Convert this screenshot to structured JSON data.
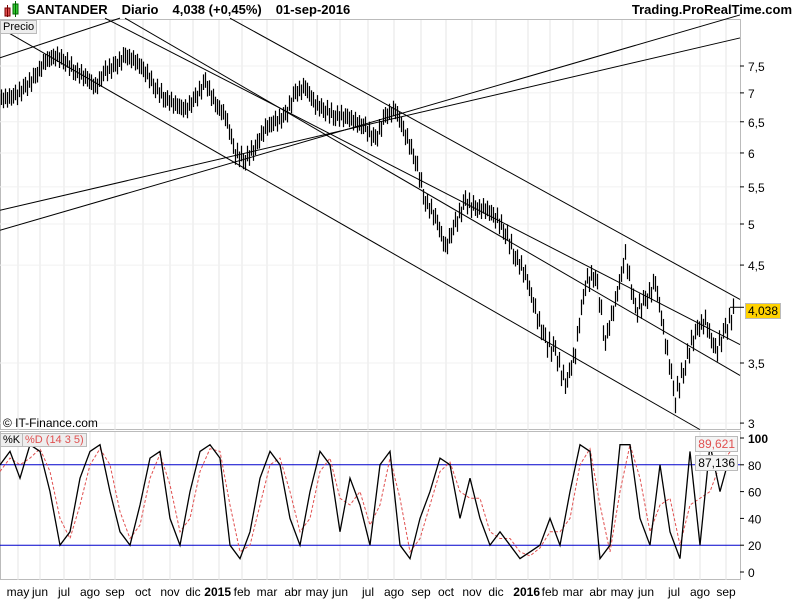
{
  "header": {
    "symbol": "SANTANDER",
    "period": "Diario",
    "price_change": "4,038 (+0,45%)",
    "date": "01-sep-2016",
    "site": "Trading.ProRealTime.com"
  },
  "price_panel": {
    "label": "Precio",
    "copyright": "© IT-Finance.com",
    "last_price_label": "4,038"
  },
  "stoch_panel": {
    "k_label": "%K",
    "d_label": "%D (14 3 5)",
    "k_value": "87,136",
    "d_value": "89,621"
  },
  "colors": {
    "price": "#000000",
    "k": "#000000",
    "d": "#e05050",
    "bands": "#0000cc",
    "last_bg": "#ffd200"
  },
  "chart_data": [
    {
      "type": "line",
      "title": "SANTANDER Diario",
      "yscale": "log",
      "ylim": [
        2.95,
        8.6
      ],
      "yticks": [
        {
          "v": 7.5,
          "t": "7,5"
        },
        {
          "v": 7,
          "t": "7"
        },
        {
          "v": 6.5,
          "t": "6,5"
        },
        {
          "v": 6,
          "t": "6"
        },
        {
          "v": 5.5,
          "t": "5,5"
        },
        {
          "v": 5,
          "t": "5"
        },
        {
          "v": 4.5,
          "t": "4,5"
        },
        {
          "v": 3.5,
          "t": "3,5"
        },
        {
          "v": 3,
          "t": "3"
        }
      ],
      "xticks": [
        {
          "i": 1.8,
          "t": "may"
        },
        {
          "i": 4,
          "t": "jun"
        },
        {
          "i": 6.4,
          "t": "jul"
        },
        {
          "i": 9,
          "t": "ago"
        },
        {
          "i": 11.5,
          "t": "sep"
        },
        {
          "i": 14.3,
          "t": "oct"
        },
        {
          "i": 17,
          "t": "nov"
        },
        {
          "i": 19.3,
          "t": "dic"
        },
        {
          "i": 21.9,
          "t": "2015",
          "bold": true
        },
        {
          "i": 24.2,
          "t": "feb"
        },
        {
          "i": 26.7,
          "t": "mar"
        },
        {
          "i": 29.3,
          "t": "abr"
        },
        {
          "i": 31.7,
          "t": "may"
        },
        {
          "i": 34,
          "t": "jun"
        },
        {
          "i": 36.8,
          "t": "jul"
        },
        {
          "i": 39.4,
          "t": "ago"
        },
        {
          "i": 42.1,
          "t": "sep"
        },
        {
          "i": 44.6,
          "t": "oct"
        },
        {
          "i": 47.2,
          "t": "nov"
        },
        {
          "i": 49.6,
          "t": "dic"
        },
        {
          "i": 52.8,
          "t": "2016",
          "bold": true
        },
        {
          "i": 55,
          "t": "feb"
        },
        {
          "i": 57.3,
          "t": "mar"
        },
        {
          "i": 59.8,
          "t": "abr"
        },
        {
          "i": 62.2,
          "t": "may"
        },
        {
          "i": 64.6,
          "t": "jun"
        },
        {
          "i": 67.4,
          "t": "jul"
        },
        {
          "i": 70,
          "t": "ago"
        },
        {
          "i": 72.6,
          "t": "sep"
        }
      ],
      "values": [
        6.9,
        6.95,
        7.1,
        7.3,
        7.6,
        7.7,
        7.6,
        7.4,
        7.3,
        7.1,
        7.4,
        7.5,
        7.7,
        7.6,
        7.4,
        7.1,
        6.9,
        6.8,
        6.7,
        6.9,
        7.2,
        6.8,
        6.6,
        6.0,
        5.9,
        6.1,
        6.4,
        6.5,
        6.6,
        7.0,
        7.1,
        6.8,
        6.7,
        6.6,
        6.6,
        6.5,
        6.4,
        6.2,
        6.6,
        6.7,
        6.3,
        5.9,
        5.3,
        5.1,
        4.7,
        5.0,
        5.3,
        5.2,
        5.2,
        5.1,
        4.9,
        4.6,
        4.4,
        4.0,
        3.7,
        3.6,
        3.3,
        3.6,
        4.3,
        4.4,
        3.7,
        4.1,
        4.6,
        4.0,
        4.1,
        4.3,
        3.7,
        3.2,
        3.5,
        3.8,
        3.9,
        3.6,
        3.8,
        4.038
      ],
      "trendlines": [
        [
          [
            0,
            5.18
          ],
          [
            74,
            8.06
          ]
        ],
        [
          [
            0,
            4.92
          ],
          [
            74,
            8.55
          ]
        ],
        [
          [
            0,
            7.66
          ],
          [
            12,
            8.48
          ]
        ],
        [
          [
            0,
            8.27
          ],
          [
            70,
            2.95
          ]
        ],
        [
          [
            10.5,
            8.48
          ],
          [
            74,
            3.67
          ]
        ],
        [
          [
            12.5,
            8.48
          ],
          [
            74,
            3.39
          ]
        ],
        [
          [
            23,
            8.48
          ],
          [
            74,
            4.12
          ]
        ]
      ]
    },
    {
      "type": "line",
      "title": "Stochastic %K %D (14 3 5)",
      "ylim": [
        0,
        100
      ],
      "yticks": [
        100,
        80,
        60,
        40,
        20,
        0
      ],
      "bands": [
        80,
        20
      ],
      "series": [
        {
          "name": "%K",
          "values": [
            80,
            90,
            70,
            95,
            90,
            60,
            20,
            30,
            70,
            90,
            95,
            60,
            30,
            20,
            50,
            85,
            90,
            40,
            20,
            60,
            90,
            95,
            85,
            20,
            10,
            30,
            70,
            90,
            80,
            40,
            20,
            60,
            90,
            80,
            30,
            70,
            50,
            20,
            80,
            90,
            20,
            10,
            40,
            60,
            85,
            80,
            40,
            70,
            40,
            20,
            30,
            20,
            10,
            15,
            20,
            40,
            20,
            60,
            95,
            90,
            10,
            20,
            95,
            95,
            40,
            20,
            80,
            30,
            10,
            90,
            20,
            95,
            60,
            87.136
          ]
        },
        {
          "name": "%D",
          "values": [
            75,
            85,
            80,
            85,
            92,
            75,
            40,
            25,
            50,
            80,
            92,
            80,
            45,
            25,
            35,
            70,
            88,
            65,
            30,
            40,
            75,
            92,
            90,
            50,
            15,
            20,
            50,
            80,
            85,
            60,
            30,
            40,
            75,
            85,
            55,
            50,
            60,
            35,
            50,
            85,
            55,
            15,
            25,
            50,
            75,
            82,
            60,
            55,
            55,
            30,
            25,
            25,
            15,
            12,
            18,
            30,
            30,
            40,
            80,
            92,
            50,
            15,
            60,
            95,
            70,
            30,
            50,
            55,
            20,
            50,
            55,
            60,
            80,
            89.621
          ]
        }
      ]
    }
  ]
}
